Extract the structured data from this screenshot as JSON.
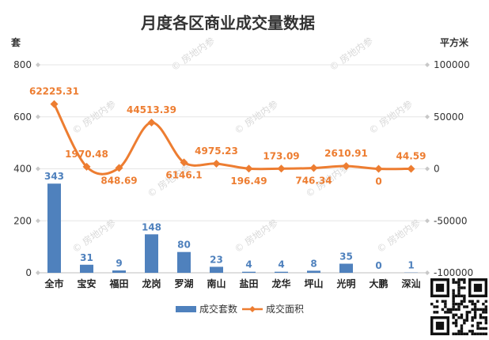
{
  "chart_data": {
    "type": "bar",
    "title": "月度各区商业成交量数据",
    "categories": [
      "全市",
      "宝安",
      "福田",
      "龙岗",
      "罗湖",
      "南山",
      "盐田",
      "龙华",
      "坪山",
      "光明",
      "大鹏",
      "深汕"
    ],
    "series": [
      {
        "name": "成交套数",
        "type": "bar",
        "axis": "left",
        "color": "#4f81bd",
        "values": [
          343,
          31,
          9,
          148,
          80,
          23,
          4,
          4,
          8,
          35,
          0,
          1
        ],
        "labels": [
          "343",
          "31",
          "9",
          "148",
          "80",
          "23",
          "4",
          "4",
          "8",
          "35",
          "0",
          "1"
        ]
      },
      {
        "name": "成交面积",
        "type": "line",
        "axis": "right",
        "color": "#ed7d31",
        "values": [
          62225.31,
          1970.48,
          848.69,
          44513.39,
          6146.1,
          4975.23,
          196.49,
          173.09,
          746.34,
          2610.91,
          0,
          44.59
        ],
        "labels": [
          "62225.31",
          "1970.48",
          "848.69",
          "44513.39",
          "6146.1",
          "4975.23",
          "196.49",
          "173.09",
          "746.34",
          "2610.91",
          "0",
          "44.59"
        ]
      }
    ],
    "y_left": {
      "unit": "套",
      "min": 0,
      "max": 800,
      "ticks": [
        0,
        200,
        400,
        600,
        800
      ]
    },
    "y_right": {
      "unit": "平方米",
      "min": -100000,
      "max": 100000,
      "ticks": [
        -100000,
        -50000,
        0,
        50000,
        100000
      ]
    },
    "legend": {
      "position": "bottom",
      "items": [
        "成交套数",
        "成交面积"
      ]
    },
    "grid": true,
    "watermark": "© 房地内参"
  }
}
